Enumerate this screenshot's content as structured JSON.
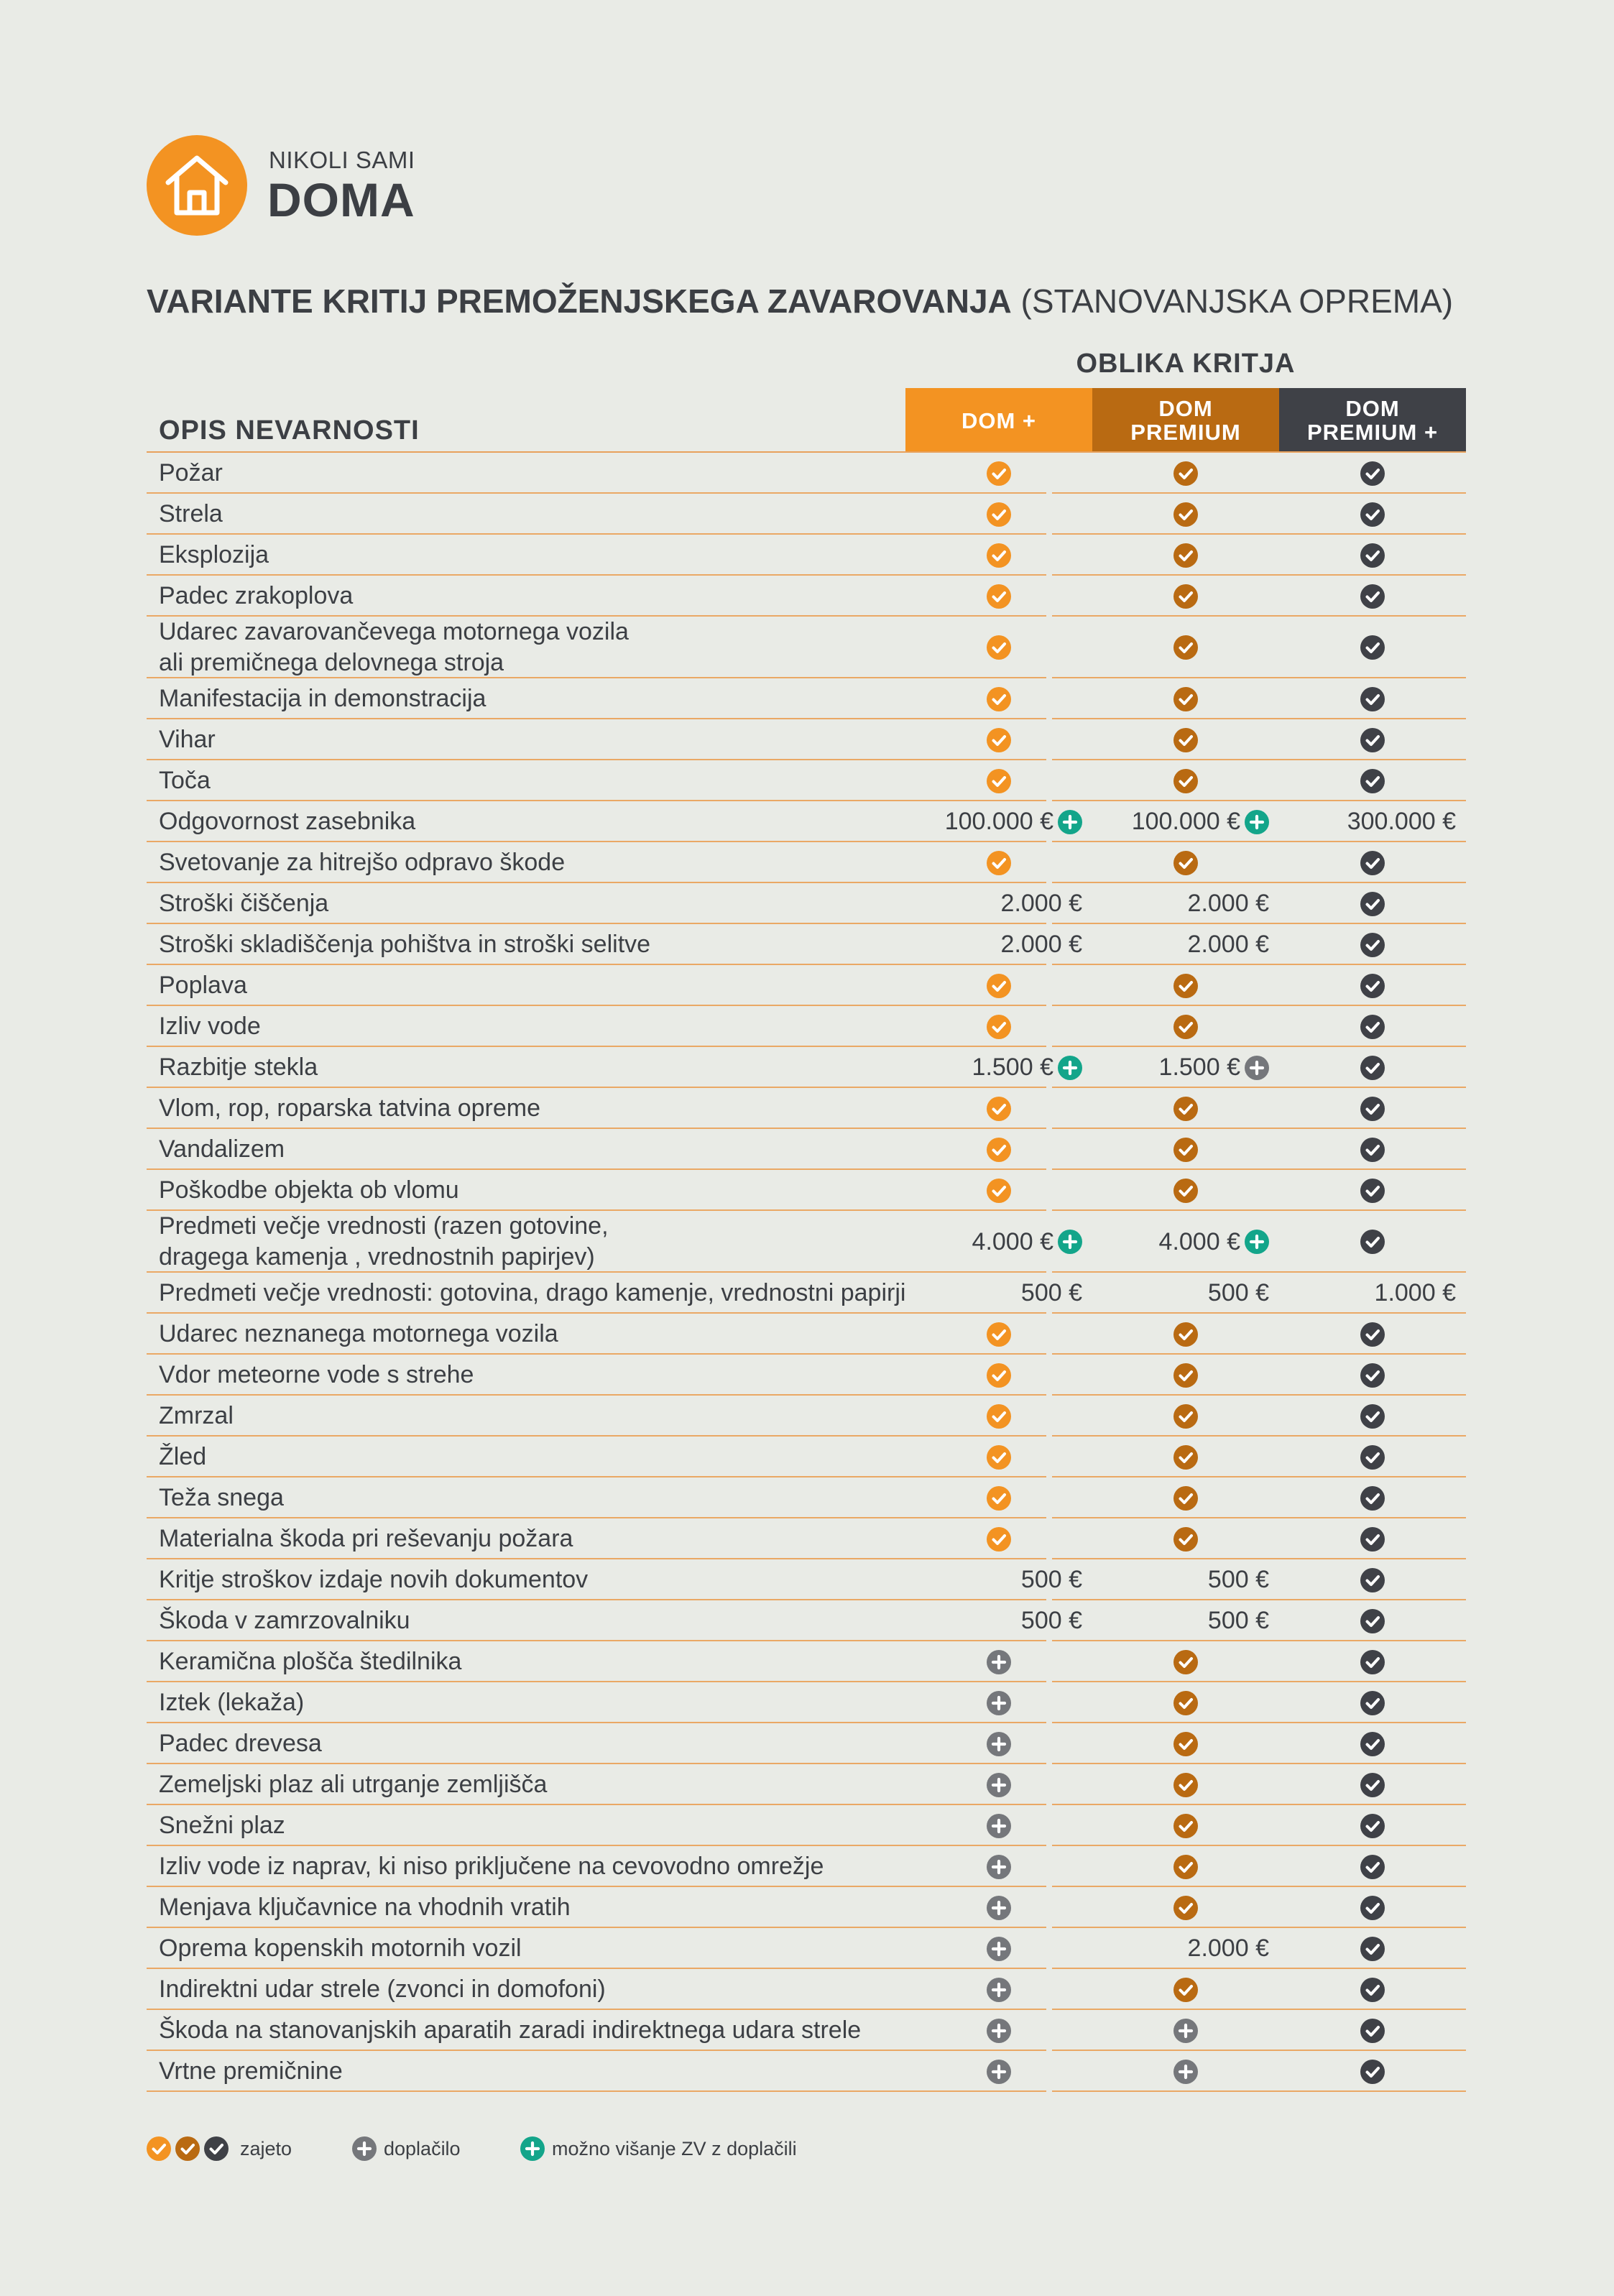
{
  "brand": {
    "small": "NIKOLI SAMI",
    "big": "DOMA",
    "logo_icon": "house-icon"
  },
  "title": {
    "bold": "VARIANTE KRITIJ PREMOŽENJSKEGA ZAVAROVANJA",
    "normal": " (STANOVANJSKA OPREMA)"
  },
  "table": {
    "coverage_label": "OBLIKA KRITJA",
    "risk_header": "OPIS NEVARNOSTI",
    "columns": [
      {
        "line1": "DOM +",
        "line2": "",
        "color": "#f39322"
      },
      {
        "line1": "DOM",
        "line2": "PREMIUM",
        "color": "#b96a12"
      },
      {
        "line1": "DOM",
        "line2": "PREMIUM +",
        "color": "#3f4147"
      }
    ],
    "rows": [
      {
        "label": [
          "Požar"
        ],
        "cells": [
          {
            "icon": "check-orange"
          },
          {
            "icon": "check-brown"
          },
          {
            "icon": "check-dark"
          }
        ]
      },
      {
        "label": [
          "Strela"
        ],
        "cells": [
          {
            "icon": "check-orange"
          },
          {
            "icon": "check-brown"
          },
          {
            "icon": "check-dark"
          }
        ]
      },
      {
        "label": [
          "Eksplozija"
        ],
        "cells": [
          {
            "icon": "check-orange"
          },
          {
            "icon": "check-brown"
          },
          {
            "icon": "check-dark"
          }
        ]
      },
      {
        "label": [
          "Padec zrakoplova"
        ],
        "cells": [
          {
            "icon": "check-orange"
          },
          {
            "icon": "check-brown"
          },
          {
            "icon": "check-dark"
          }
        ]
      },
      {
        "label": [
          "Udarec zavarovančevega motornega vozila",
          "ali premičnega delovnega stroja"
        ],
        "cells": [
          {
            "icon": "check-orange"
          },
          {
            "icon": "check-brown"
          },
          {
            "icon": "check-dark"
          }
        ]
      },
      {
        "label": [
          "Manifestacija in demonstracija"
        ],
        "cells": [
          {
            "icon": "check-orange"
          },
          {
            "icon": "check-brown"
          },
          {
            "icon": "check-dark"
          }
        ]
      },
      {
        "label": [
          "Vihar"
        ],
        "cells": [
          {
            "icon": "check-orange"
          },
          {
            "icon": "check-brown"
          },
          {
            "icon": "check-dark"
          }
        ]
      },
      {
        "label": [
          "Toča"
        ],
        "cells": [
          {
            "icon": "check-orange"
          },
          {
            "icon": "check-brown"
          },
          {
            "icon": "check-dark"
          }
        ]
      },
      {
        "label": [
          "Odgovornost zasebnika"
        ],
        "cells": [
          {
            "text": "100.000 €",
            "icon": "plus-green"
          },
          {
            "text": "100.000 €",
            "icon": "plus-green"
          },
          {
            "text": "300.000 €"
          }
        ]
      },
      {
        "label": [
          "Svetovanje za hitrejšo odpravo škode"
        ],
        "cells": [
          {
            "icon": "check-orange"
          },
          {
            "icon": "check-brown"
          },
          {
            "icon": "check-dark"
          }
        ]
      },
      {
        "label": [
          "Stroški čiščenja"
        ],
        "cells": [
          {
            "text": "2.000 €"
          },
          {
            "text": "2.000 €"
          },
          {
            "icon": "check-dark"
          }
        ]
      },
      {
        "label": [
          "Stroški skladiščenja pohištva in stroški selitve"
        ],
        "cells": [
          {
            "text": "2.000 €"
          },
          {
            "text": "2.000 €"
          },
          {
            "icon": "check-dark"
          }
        ]
      },
      {
        "label": [
          "Poplava"
        ],
        "cells": [
          {
            "icon": "check-orange"
          },
          {
            "icon": "check-brown"
          },
          {
            "icon": "check-dark"
          }
        ]
      },
      {
        "label": [
          "Izliv vode"
        ],
        "cells": [
          {
            "icon": "check-orange"
          },
          {
            "icon": "check-brown"
          },
          {
            "icon": "check-dark"
          }
        ]
      },
      {
        "label": [
          "Razbitje stekla"
        ],
        "cells": [
          {
            "text": "1.500 €",
            "icon": "plus-green"
          },
          {
            "text": "1.500 €",
            "icon": "plus-grey"
          },
          {
            "icon": "check-dark"
          }
        ]
      },
      {
        "label": [
          "Vlom, rop, roparska tatvina opreme"
        ],
        "cells": [
          {
            "icon": "check-orange"
          },
          {
            "icon": "check-brown"
          },
          {
            "icon": "check-dark"
          }
        ]
      },
      {
        "label": [
          "Vandalizem"
        ],
        "cells": [
          {
            "icon": "check-orange"
          },
          {
            "icon": "check-brown"
          },
          {
            "icon": "check-dark"
          }
        ]
      },
      {
        "label": [
          "Poškodbe objekta ob vlomu"
        ],
        "cells": [
          {
            "icon": "check-orange"
          },
          {
            "icon": "check-brown"
          },
          {
            "icon": "check-dark"
          }
        ]
      },
      {
        "label": [
          "Predmeti večje vrednosti (razen gotovine,",
          "dragega kamenja , vrednostnih papirjev)"
        ],
        "cells": [
          {
            "text": "4.000 €",
            "icon": "plus-green"
          },
          {
            "text": "4.000 €",
            "icon": "plus-green"
          },
          {
            "icon": "check-dark"
          }
        ]
      },
      {
        "label": [
          "Predmeti večje vrednosti: gotovina, drago kamenje, vrednostni papirji"
        ],
        "cells": [
          {
            "text": "500 €"
          },
          {
            "text": "500 €"
          },
          {
            "text": "1.000 €"
          }
        ]
      },
      {
        "label": [
          "Udarec neznanega motornega vozila"
        ],
        "cells": [
          {
            "icon": "check-orange"
          },
          {
            "icon": "check-brown"
          },
          {
            "icon": "check-dark"
          }
        ]
      },
      {
        "label": [
          "Vdor meteorne vode s strehe"
        ],
        "cells": [
          {
            "icon": "check-orange"
          },
          {
            "icon": "check-brown"
          },
          {
            "icon": "check-dark"
          }
        ]
      },
      {
        "label": [
          "Zmrzal"
        ],
        "cells": [
          {
            "icon": "check-orange"
          },
          {
            "icon": "check-brown"
          },
          {
            "icon": "check-dark"
          }
        ]
      },
      {
        "label": [
          "Žled"
        ],
        "cells": [
          {
            "icon": "check-orange"
          },
          {
            "icon": "check-brown"
          },
          {
            "icon": "check-dark"
          }
        ]
      },
      {
        "label": [
          "Teža snega"
        ],
        "cells": [
          {
            "icon": "check-orange"
          },
          {
            "icon": "check-brown"
          },
          {
            "icon": "check-dark"
          }
        ]
      },
      {
        "label": [
          "Materialna škoda pri reševanju požara"
        ],
        "cells": [
          {
            "icon": "check-orange"
          },
          {
            "icon": "check-brown"
          },
          {
            "icon": "check-dark"
          }
        ]
      },
      {
        "label": [
          "Kritje stroškov izdaje novih dokumentov"
        ],
        "cells": [
          {
            "text": "500 €"
          },
          {
            "text": "500 €"
          },
          {
            "icon": "check-dark"
          }
        ]
      },
      {
        "label": [
          "Škoda v zamrzovalniku"
        ],
        "cells": [
          {
            "text": "500 €"
          },
          {
            "text": "500 €"
          },
          {
            "icon": "check-dark"
          }
        ]
      },
      {
        "label": [
          "Keramična plošča štedilnika"
        ],
        "cells": [
          {
            "icon": "plus-grey"
          },
          {
            "icon": "check-brown"
          },
          {
            "icon": "check-dark"
          }
        ]
      },
      {
        "label": [
          "Iztek (lekaža)"
        ],
        "cells": [
          {
            "icon": "plus-grey"
          },
          {
            "icon": "check-brown"
          },
          {
            "icon": "check-dark"
          }
        ]
      },
      {
        "label": [
          "Padec drevesa"
        ],
        "cells": [
          {
            "icon": "plus-grey"
          },
          {
            "icon": "check-brown"
          },
          {
            "icon": "check-dark"
          }
        ]
      },
      {
        "label": [
          "Zemeljski plaz ali utrganje zemljišča"
        ],
        "cells": [
          {
            "icon": "plus-grey"
          },
          {
            "icon": "check-brown"
          },
          {
            "icon": "check-dark"
          }
        ]
      },
      {
        "label": [
          "Snežni plaz"
        ],
        "cells": [
          {
            "icon": "plus-grey"
          },
          {
            "icon": "check-brown"
          },
          {
            "icon": "check-dark"
          }
        ]
      },
      {
        "label": [
          "Izliv vode iz naprav, ki niso priključene na cevovodno omrežje"
        ],
        "cells": [
          {
            "icon": "plus-grey"
          },
          {
            "icon": "check-brown"
          },
          {
            "icon": "check-dark"
          }
        ]
      },
      {
        "label": [
          "Menjava ključavnice na vhodnih vratih"
        ],
        "cells": [
          {
            "icon": "plus-grey"
          },
          {
            "icon": "check-brown"
          },
          {
            "icon": "check-dark"
          }
        ]
      },
      {
        "label": [
          "Oprema kopenskih motornih vozil"
        ],
        "cells": [
          {
            "icon": "plus-grey"
          },
          {
            "text": "2.000 €"
          },
          {
            "icon": "check-dark"
          }
        ]
      },
      {
        "label": [
          "Indirektni udar strele (zvonci in domofoni)"
        ],
        "cells": [
          {
            "icon": "plus-grey"
          },
          {
            "icon": "check-brown"
          },
          {
            "icon": "check-dark"
          }
        ]
      },
      {
        "label": [
          "Škoda na stanovanjskih aparatih zaradi indirektnega udara strele"
        ],
        "cells": [
          {
            "icon": "plus-grey"
          },
          {
            "icon": "plus-grey"
          },
          {
            "icon": "check-dark"
          }
        ]
      },
      {
        "label": [
          "Vrtne premičnine"
        ],
        "cells": [
          {
            "icon": "plus-grey"
          },
          {
            "icon": "plus-grey"
          },
          {
            "icon": "check-dark"
          }
        ]
      }
    ]
  },
  "legend": {
    "covered": "zajeto",
    "surcharge": "doplačilo",
    "raise_limit": "možno višanje ZV z doplačili"
  },
  "colors": {
    "orange": "#f39322",
    "brown": "#b96a12",
    "dark": "#3f4147",
    "green": "#13a58a",
    "grey": "#75777b",
    "rule": "#eaa865",
    "background": "#e9ebe6"
  }
}
